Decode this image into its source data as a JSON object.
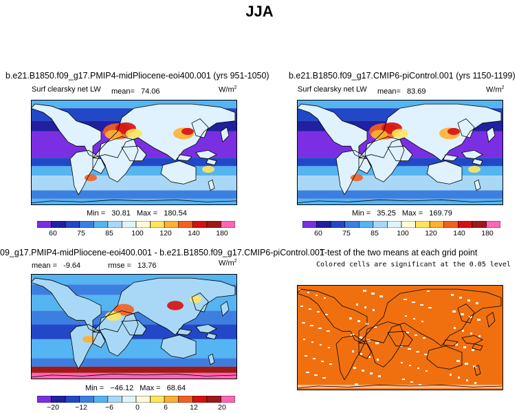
{
  "title": "JJA",
  "colors": {
    "palette": [
      "#7b2fe3",
      "#2020a0",
      "#2248c8",
      "#3d7fe0",
      "#55b4f2",
      "#a8d8f6",
      "#dff2fd",
      "#fffbd8",
      "#ffe55a",
      "#ffb030",
      "#f46020",
      "#d81010",
      "#a01818",
      "#ff66b3"
    ],
    "significance": "#f07010",
    "nonsignificant": "#ffffff",
    "land_outline": "#000000"
  },
  "panels": [
    {
      "title": "b.e21.B1850.f09_g17.PMIP4-midPliocene-eoi400.001 (yrs 951-1050)",
      "variable": "Surf clearsky net LW",
      "mean_label": "mean=",
      "mean_value": "74.06",
      "units_base": "W/m",
      "units_exp": "2",
      "min_label": "Min =",
      "min_value": "30.81",
      "max_label": "Max =",
      "max_value": "180.54",
      "colorbar_labels": [
        "60",
        "75",
        "85",
        "100",
        "120",
        "140",
        "180"
      ]
    },
    {
      "title": "b.e21.B1850.f09_g17.CMIP6-piControl.001 (yrs 1150-1199)",
      "variable": "Surf clearsky net LW",
      "mean_label": "mean=",
      "mean_value": "83.69",
      "units_base": "W/m",
      "units_exp": "2",
      "min_label": "Min =",
      "min_value": "35.25",
      "max_label": "Max =",
      "max_value": "169.79",
      "colorbar_labels": [
        "60",
        "75",
        "85",
        "100",
        "120",
        "140",
        "180"
      ]
    },
    {
      "title": "09_g17.PMIP4-midPliocene-eoi400.001 - b.e21.B1850.f09_g17.CMIP6-piControl.001",
      "mean_label": "mean =",
      "mean_value": "-9.64",
      "rmse_label": "rmse =",
      "rmse_value": "13.76",
      "units_base": "W/m",
      "units_exp": "2",
      "min_label": "Min =",
      "min_value": "−46.12",
      "max_label": "Max =",
      "max_value": "68.64",
      "colorbar_labels": [
        "−20",
        "−12",
        "−6",
        "0",
        "6",
        "12",
        "20"
      ]
    },
    {
      "title": "T-test of the two means at each grid point",
      "subtitle": "Colored cells are significant at the 0.05 level"
    }
  ]
}
